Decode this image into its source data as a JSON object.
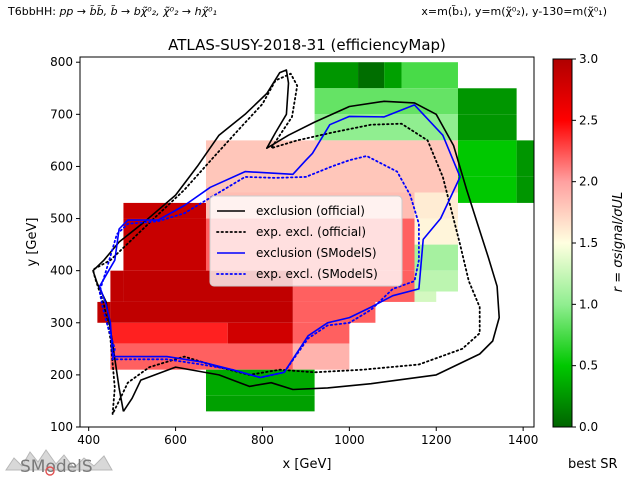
{
  "header": {
    "process_prefix": "T6bbHH: ",
    "process_formula": "pp → b̃b̃, b̃ → bχ̃⁰₂, χ̃⁰₂ → hχ̃⁰₁",
    "mass_mapping": "x=m(b̃₁), y=m(χ̃⁰₂), y-130=m(χ̃⁰₁)"
  },
  "footer": {
    "best_sr_label": "best SR",
    "logo_text": "SModelS"
  },
  "colors": {
    "official_line": "#000000",
    "smodels_line": "#0000ff",
    "colormap": [
      "#006400",
      "#00c800",
      "#90ee90",
      "#ffffe0",
      "#ffa0a0",
      "#ff0000",
      "#b00000"
    ]
  },
  "chart_data": {
    "type": "heatmap",
    "title": "ATLAS-SUSY-2018-31 (efficiencyMap)",
    "xlabel": "x [GeV]",
    "ylabel": "y [GeV]",
    "colorbar_label": "r = σsignal/σUL",
    "xlim": [
      380,
      1425
    ],
    "ylim": [
      100,
      810
    ],
    "x_ticks": [
      400,
      600,
      800,
      1000,
      1200,
      1400
    ],
    "y_ticks": [
      100,
      200,
      300,
      400,
      500,
      600,
      700,
      800
    ],
    "colorbar_range": [
      0,
      3
    ],
    "colorbar_ticks": [
      0.0,
      0.5,
      1.0,
      1.5,
      2.0,
      2.5,
      3.0
    ],
    "legend_location": "center-left",
    "legend": [
      {
        "label": "exclusion (official)",
        "color": "#000000",
        "dash": "solid"
      },
      {
        "label": "exp. excl. (official)",
        "color": "#000000",
        "dash": "dotted"
      },
      {
        "label": "exclusion (SModelS)",
        "color": "#0000ff",
        "dash": "solid"
      },
      {
        "label": "exp. excl. (SModelS)",
        "color": "#0000ff",
        "dash": "dotted"
      }
    ],
    "cells": [
      {
        "x0": 920,
        "x1": 1020,
        "y0": 750,
        "y1": 800,
        "r": 0.25
      },
      {
        "x0": 1020,
        "x1": 1080,
        "y0": 750,
        "y1": 800,
        "r": 0.05
      },
      {
        "x0": 1080,
        "x1": 1120,
        "y0": 750,
        "y1": 800,
        "r": 0.3
      },
      {
        "x0": 1120,
        "x1": 1250,
        "y0": 750,
        "y1": 800,
        "r": 0.75
      },
      {
        "x0": 920,
        "x1": 1250,
        "y0": 700,
        "y1": 750,
        "r": 0.85
      },
      {
        "x0": 1250,
        "x1": 1385,
        "y0": 700,
        "y1": 750,
        "r": 0.25
      },
      {
        "x0": 920,
        "x1": 1250,
        "y0": 650,
        "y1": 700,
        "r": 1.0
      },
      {
        "x0": 1250,
        "x1": 1385,
        "y0": 650,
        "y1": 700,
        "r": 0.25
      },
      {
        "x0": 670,
        "x1": 1250,
        "y0": 550,
        "y1": 650,
        "r": 1.8
      },
      {
        "x0": 1250,
        "x1": 1385,
        "y0": 580,
        "y1": 650,
        "r": 0.5
      },
      {
        "x0": 1385,
        "x1": 1425,
        "y0": 580,
        "y1": 650,
        "r": 0.25
      },
      {
        "x0": 1250,
        "x1": 1385,
        "y0": 530,
        "y1": 580,
        "r": 0.5
      },
      {
        "x0": 1385,
        "x1": 1425,
        "y0": 530,
        "y1": 580,
        "r": 0.25
      },
      {
        "x0": 670,
        "x1": 1150,
        "y0": 500,
        "y1": 550,
        "r": 1.85
      },
      {
        "x0": 1150,
        "x1": 1250,
        "y0": 500,
        "y1": 550,
        "r": 1.6
      },
      {
        "x0": 1150,
        "x1": 1250,
        "y0": 450,
        "y1": 500,
        "r": 1.55
      },
      {
        "x0": 1150,
        "x1": 1250,
        "y0": 400,
        "y1": 450,
        "r": 1.1
      },
      {
        "x0": 1150,
        "x1": 1250,
        "y0": 360,
        "y1": 400,
        "r": 1.2
      },
      {
        "x0": 480,
        "x1": 670,
        "y0": 500,
        "y1": 530,
        "r": 2.85
      },
      {
        "x0": 480,
        "x1": 670,
        "y0": 400,
        "y1": 500,
        "r": 2.85
      },
      {
        "x0": 670,
        "x1": 1150,
        "y0": 400,
        "y1": 500,
        "r": 2.2
      },
      {
        "x0": 450,
        "x1": 480,
        "y0": 340,
        "y1": 400,
        "r": 2.9
      },
      {
        "x0": 480,
        "x1": 870,
        "y0": 340,
        "y1": 400,
        "r": 2.9
      },
      {
        "x0": 870,
        "x1": 1150,
        "y0": 340,
        "y1": 400,
        "r": 2.2
      },
      {
        "x0": 1150,
        "x1": 1200,
        "y0": 340,
        "y1": 360,
        "r": 1.3
      },
      {
        "x0": 420,
        "x1": 450,
        "y0": 300,
        "y1": 340,
        "r": 2.9
      },
      {
        "x0": 450,
        "x1": 870,
        "y0": 300,
        "y1": 340,
        "r": 2.9
      },
      {
        "x0": 870,
        "x1": 1060,
        "y0": 300,
        "y1": 340,
        "r": 2.2
      },
      {
        "x0": 450,
        "x1": 720,
        "y0": 260,
        "y1": 300,
        "r": 2.4
      },
      {
        "x0": 720,
        "x1": 870,
        "y0": 260,
        "y1": 300,
        "r": 2.8
      },
      {
        "x0": 870,
        "x1": 1000,
        "y0": 260,
        "y1": 300,
        "r": 2.2
      },
      {
        "x0": 450,
        "x1": 870,
        "y0": 210,
        "y1": 260,
        "r": 2.2
      },
      {
        "x0": 870,
        "x1": 1000,
        "y0": 210,
        "y1": 260,
        "r": 1.9
      },
      {
        "x0": 670,
        "x1": 920,
        "y0": 160,
        "y1": 210,
        "r": 0.35
      },
      {
        "x0": 670,
        "x1": 920,
        "y0": 130,
        "y1": 160,
        "r": 0.3
      }
    ],
    "series": [
      {
        "name": "exclusion (official)",
        "color": "#000000",
        "dash": "solid",
        "points": [
          [
            480,
            130
          ],
          [
            470,
            175
          ],
          [
            455,
            260
          ],
          [
            440,
            340
          ],
          [
            420,
            375
          ],
          [
            410,
            400
          ],
          [
            435,
            420
          ],
          [
            470,
            455
          ],
          [
            530,
            495
          ],
          [
            600,
            545
          ],
          [
            650,
            600
          ],
          [
            700,
            660
          ],
          [
            760,
            700
          ],
          [
            810,
            740
          ],
          [
            840,
            780
          ],
          [
            855,
            785
          ],
          [
            860,
            760
          ],
          [
            855,
            700
          ],
          [
            830,
            665
          ],
          [
            810,
            635
          ],
          [
            860,
            660
          ],
          [
            920,
            685
          ],
          [
            1000,
            715
          ],
          [
            1080,
            725
          ],
          [
            1150,
            722
          ],
          [
            1200,
            700
          ],
          [
            1240,
            640
          ],
          [
            1270,
            555
          ],
          [
            1295,
            490
          ],
          [
            1320,
            425
          ],
          [
            1340,
            370
          ],
          [
            1345,
            310
          ],
          [
            1330,
            265
          ],
          [
            1300,
            240
          ],
          [
            1200,
            200
          ],
          [
            1050,
            183
          ],
          [
            950,
            175
          ],
          [
            870,
            172
          ],
          [
            820,
            185
          ],
          [
            770,
            178
          ],
          [
            700,
            200
          ],
          [
            600,
            215
          ],
          [
            520,
            190
          ],
          [
            500,
            155
          ],
          [
            480,
            130
          ]
        ]
      },
      {
        "name": "exp. excl. (official)",
        "color": "#000000",
        "dash": "dotted",
        "points": [
          [
            455,
            125
          ],
          [
            460,
            175
          ],
          [
            450,
            270
          ],
          [
            435,
            335
          ],
          [
            415,
            385
          ],
          [
            410,
            402
          ],
          [
            450,
            420
          ],
          [
            500,
            460
          ],
          [
            550,
            500
          ],
          [
            620,
            555
          ],
          [
            690,
            620
          ],
          [
            750,
            675
          ],
          [
            800,
            720
          ],
          [
            830,
            765
          ],
          [
            865,
            778
          ],
          [
            880,
            755
          ],
          [
            868,
            695
          ],
          [
            840,
            660
          ],
          [
            820,
            635
          ],
          [
            880,
            650
          ],
          [
            960,
            665
          ],
          [
            1050,
            680
          ],
          [
            1120,
            682
          ],
          [
            1180,
            650
          ],
          [
            1215,
            580
          ],
          [
            1235,
            515
          ],
          [
            1255,
            450
          ],
          [
            1275,
            380
          ],
          [
            1300,
            330
          ],
          [
            1300,
            280
          ],
          [
            1260,
            250
          ],
          [
            1160,
            220
          ],
          [
            1030,
            210
          ],
          [
            920,
            205
          ],
          [
            840,
            210
          ],
          [
            770,
            200
          ],
          [
            700,
            215
          ],
          [
            620,
            235
          ],
          [
            540,
            215
          ],
          [
            490,
            185
          ],
          [
            470,
            150
          ],
          [
            455,
            125
          ]
        ]
      },
      {
        "name": "exclusion (SModelS)",
        "color": "#0000ff",
        "dash": "solid",
        "points": [
          [
            455,
            235
          ],
          [
            450,
            300
          ],
          [
            440,
            335
          ],
          [
            425,
            370
          ],
          [
            460,
            420
          ],
          [
            470,
            480
          ],
          [
            490,
            497
          ],
          [
            560,
            497
          ],
          [
            620,
            525
          ],
          [
            680,
            560
          ],
          [
            760,
            590
          ],
          [
            870,
            585
          ],
          [
            900,
            612
          ],
          [
            915,
            625
          ],
          [
            955,
            680
          ],
          [
            1000,
            696
          ],
          [
            1080,
            695
          ],
          [
            1150,
            718
          ],
          [
            1215,
            660
          ],
          [
            1255,
            580
          ],
          [
            1210,
            500
          ],
          [
            1170,
            460
          ],
          [
            1160,
            365
          ],
          [
            1100,
            352
          ],
          [
            1050,
            330
          ],
          [
            1000,
            310
          ],
          [
            950,
            300
          ],
          [
            905,
            275
          ],
          [
            850,
            205
          ],
          [
            795,
            195
          ],
          [
            730,
            210
          ],
          [
            660,
            225
          ],
          [
            580,
            235
          ],
          [
            500,
            235
          ],
          [
            455,
            235
          ]
        ]
      },
      {
        "name": "exp. excl. (SModelS)",
        "color": "#0000ff",
        "dash": "dotted",
        "points": [
          [
            455,
            230
          ],
          [
            460,
            250
          ],
          [
            445,
            290
          ],
          [
            432,
            330
          ],
          [
            425,
            360
          ],
          [
            440,
            400
          ],
          [
            465,
            470
          ],
          [
            490,
            490
          ],
          [
            560,
            495
          ],
          [
            620,
            510
          ],
          [
            680,
            540
          ],
          [
            760,
            580
          ],
          [
            830,
            578
          ],
          [
            900,
            580
          ],
          [
            960,
            600
          ],
          [
            1000,
            612
          ],
          [
            1040,
            620
          ],
          [
            1110,
            590
          ],
          [
            1140,
            545
          ],
          [
            1160,
            490
          ],
          [
            1160,
            420
          ],
          [
            1150,
            380
          ],
          [
            1100,
            365
          ],
          [
            1050,
            325
          ],
          [
            1000,
            300
          ],
          [
            950,
            295
          ],
          [
            905,
            270
          ],
          [
            850,
            205
          ],
          [
            795,
            195
          ],
          [
            730,
            210
          ],
          [
            660,
            220
          ],
          [
            580,
            230
          ],
          [
            500,
            230
          ],
          [
            455,
            230
          ]
        ]
      }
    ]
  }
}
